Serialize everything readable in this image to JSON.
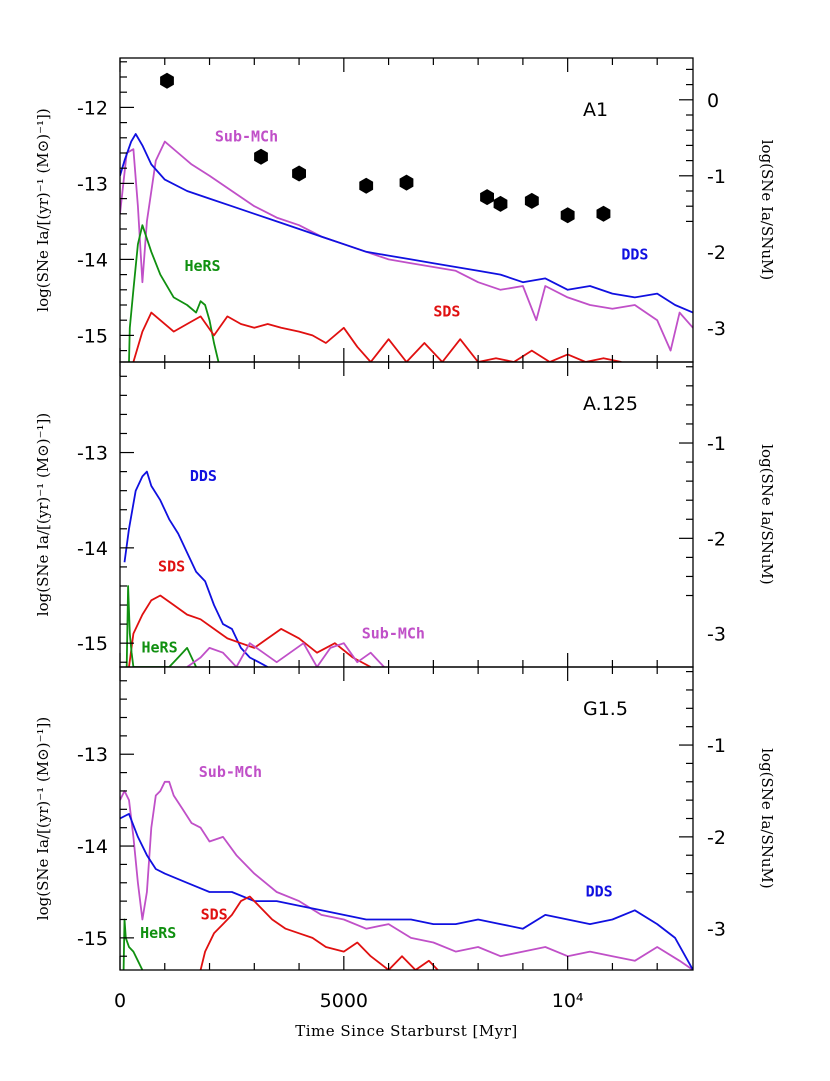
{
  "xlabel": "Time Since Starburst [Myr]",
  "x_ticks": [
    {
      "value": 0,
      "label": "0"
    },
    {
      "value": 5000,
      "label": "5000"
    },
    {
      "value": 10000,
      "label": "10⁴"
    }
  ],
  "xlim": [
    0,
    12800
  ],
  "colors": {
    "DDS": "#1010e0",
    "SDS": "#e01010",
    "Sub-MCh": "#c050c8",
    "HeRS": "#109010",
    "points": "#000000"
  },
  "chart_data": [
    {
      "type": "line",
      "panel_label": "A1",
      "ylabel_left": "log(SNe Ia/[(yr)⁻¹ (M⊙)⁻¹])",
      "ylabel_right": "log(SNe Ia/SNuM)",
      "ylim": [
        -15.35,
        -11.35
      ],
      "left_ticks": [
        {
          "value": -15,
          "label": "-15"
        },
        {
          "value": -14,
          "label": "-14"
        },
        {
          "value": -13,
          "label": "-13"
        },
        {
          "value": -12,
          "label": "-12"
        }
      ],
      "right_ticks": [
        {
          "value": -11.9,
          "label": "0"
        },
        {
          "value": -12.9,
          "label": "-1"
        },
        {
          "value": -13.9,
          "label": "-2"
        },
        {
          "value": -14.9,
          "label": "-3"
        }
      ],
      "series": [
        {
          "name": "Sub-MCh",
          "label_pos": [
            2120,
            -12.45
          ],
          "x": [
            0,
            150,
            300,
            400,
            500,
            600,
            800,
            1000,
            1300,
            1600,
            2000,
            2500,
            3000,
            3500,
            4000,
            4500,
            5000,
            5500,
            6000,
            6500,
            7000,
            7500,
            8000,
            8500,
            9000,
            9300,
            9500,
            10000,
            10500,
            11000,
            11500,
            12000,
            12300,
            12500,
            12800
          ],
          "y": [
            -13.4,
            -12.6,
            -12.55,
            -13.3,
            -14.3,
            -13.5,
            -12.7,
            -12.45,
            -12.6,
            -12.75,
            -12.9,
            -13.1,
            -13.3,
            -13.45,
            -13.55,
            -13.7,
            -13.8,
            -13.9,
            -14.0,
            -14.05,
            -14.1,
            -14.15,
            -14.3,
            -14.4,
            -14.35,
            -14.8,
            -14.35,
            -14.5,
            -14.6,
            -14.65,
            -14.6,
            -14.8,
            -15.2,
            -14.7,
            -14.9
          ]
        },
        {
          "name": "DDS",
          "label_pos": [
            11200,
            -14.0
          ],
          "x": [
            0,
            100,
            250,
            350,
            500,
            700,
            1000,
            1500,
            2000,
            2500,
            3000,
            3500,
            4000,
            4500,
            5000,
            5500,
            6000,
            6500,
            7000,
            7500,
            8000,
            8500,
            9000,
            9500,
            10000,
            10500,
            11000,
            11500,
            12000,
            12400,
            12800
          ],
          "y": [
            -12.9,
            -12.7,
            -12.45,
            -12.35,
            -12.5,
            -12.75,
            -12.95,
            -13.1,
            -13.2,
            -13.3,
            -13.4,
            -13.5,
            -13.6,
            -13.7,
            -13.8,
            -13.9,
            -13.95,
            -14.0,
            -14.05,
            -14.1,
            -14.15,
            -14.2,
            -14.3,
            -14.25,
            -14.4,
            -14.35,
            -14.45,
            -14.5,
            -14.45,
            -14.6,
            -14.7
          ]
        },
        {
          "name": "HeRS",
          "label_pos": [
            1440,
            -14.15
          ],
          "x": [
            200,
            220,
            300,
            400,
            500,
            700,
            900,
            1200,
            1500,
            1700,
            1800,
            1900,
            2000,
            2100,
            2200
          ],
          "y": [
            -15.35,
            -14.9,
            -14.4,
            -13.8,
            -13.55,
            -13.9,
            -14.2,
            -14.5,
            -14.6,
            -14.7,
            -14.55,
            -14.6,
            -14.8,
            -15.1,
            -15.35
          ]
        },
        {
          "name": "SDS",
          "label_pos": [
            7000,
            -14.75
          ],
          "x": [
            300,
            500,
            700,
            900,
            1200,
            1500,
            1800,
            2100,
            2400,
            2700,
            3000,
            3300,
            3600,
            4000,
            4300,
            4600,
            5000,
            5300,
            5600,
            6000,
            6400,
            6800,
            7200,
            7600,
            8000,
            8400,
            8800,
            9200,
            9600,
            10000,
            10400,
            10800,
            11200
          ],
          "y": [
            -15.35,
            -14.95,
            -14.7,
            -14.8,
            -14.95,
            -14.85,
            -14.75,
            -15.0,
            -14.75,
            -14.85,
            -14.9,
            -14.85,
            -14.9,
            -14.95,
            -15.0,
            -15.1,
            -14.9,
            -15.15,
            -15.35,
            -15.05,
            -15.35,
            -15.1,
            -15.35,
            -15.05,
            -15.35,
            -15.3,
            -15.35,
            -15.2,
            -15.35,
            -15.25,
            -15.35,
            -15.3,
            -15.35
          ]
        }
      ],
      "points": [
        {
          "x": 1050,
          "y": -11.65
        },
        {
          "x": 3150,
          "y": -12.65
        },
        {
          "x": 4000,
          "y": -12.87
        },
        {
          "x": 5500,
          "y": -13.03
        },
        {
          "x": 6400,
          "y": -12.99
        },
        {
          "x": 8200,
          "y": -13.18
        },
        {
          "x": 8500,
          "y": -13.27
        },
        {
          "x": 9200,
          "y": -13.23
        },
        {
          "x": 10000,
          "y": -13.42
        },
        {
          "x": 10800,
          "y": -13.4
        }
      ]
    },
    {
      "type": "line",
      "panel_label": "A.125",
      "ylabel_left": "log(SNe Ia/[(yr)⁻¹ (M⊙)⁻¹])",
      "ylabel_right": "log(SNe Ia/SNuM)",
      "ylim": [
        -15.25,
        -12.05
      ],
      "left_ticks": [
        {
          "value": -15,
          "label": "-15"
        },
        {
          "value": -14,
          "label": "-14"
        },
        {
          "value": -13,
          "label": "-13"
        }
      ],
      "right_ticks": [
        {
          "value": -12.9,
          "label": "-1"
        },
        {
          "value": -13.9,
          "label": "-2"
        },
        {
          "value": -14.9,
          "label": "-3"
        }
      ],
      "series": [
        {
          "name": "DDS",
          "label_pos": [
            1560,
            -13.3
          ],
          "x": [
            100,
            200,
            350,
            500,
            600,
            700,
            900,
            1100,
            1300,
            1500,
            1700,
            1900,
            2100,
            2300,
            2500,
            2700,
            2900,
            3100,
            3300
          ],
          "y": [
            -14.15,
            -13.8,
            -13.4,
            -13.25,
            -13.2,
            -13.35,
            -13.5,
            -13.7,
            -13.85,
            -14.05,
            -14.25,
            -14.35,
            -14.6,
            -14.8,
            -14.85,
            -15.05,
            -15.15,
            -15.2,
            -15.25
          ]
        },
        {
          "name": "SDS",
          "label_pos": [
            850,
            -14.25
          ],
          "x": [
            200,
            300,
            500,
            700,
            900,
            1200,
            1500,
            1800,
            2100,
            2400,
            2700,
            3000,
            3300,
            3600,
            4000,
            4400,
            4800,
            5200,
            5600
          ],
          "y": [
            -15.25,
            -14.9,
            -14.7,
            -14.55,
            -14.5,
            -14.6,
            -14.7,
            -14.75,
            -14.85,
            -14.95,
            -15.0,
            -15.05,
            -14.95,
            -14.85,
            -14.95,
            -15.1,
            -15.0,
            -15.15,
            -15.25
          ]
        },
        {
          "name": "HeRS",
          "label_pos": [
            480,
            -15.1
          ],
          "x": [
            150,
            180,
            220,
            260,
            300,
            1100,
            1300,
            1500,
            1700
          ],
          "y": [
            -15.25,
            -14.4,
            -14.9,
            -15.1,
            -15.25,
            -15.25,
            -15.15,
            -15.05,
            -15.25
          ]
        },
        {
          "name": "Sub-MCh",
          "label_pos": [
            5400,
            -14.95
          ],
          "x": [
            1500,
            1800,
            2000,
            2300,
            2600,
            2900,
            3200,
            3500,
            3800,
            4100,
            4400,
            4700,
            5000,
            5300,
            5600,
            5900
          ],
          "y": [
            -15.25,
            -15.15,
            -15.05,
            -15.1,
            -15.25,
            -15.0,
            -15.1,
            -15.2,
            -15.1,
            -15.0,
            -15.25,
            -15.05,
            -15.0,
            -15.2,
            -15.1,
            -15.25
          ]
        }
      ]
    },
    {
      "type": "line",
      "panel_label": "G1.5",
      "ylabel_left": "log(SNe Ia/[(yr)⁻¹ (M⊙)⁻¹])",
      "ylabel_right": "log(SNe Ia/SNuM)",
      "ylim": [
        -15.35,
        -12.05
      ],
      "left_ticks": [
        {
          "value": -15,
          "label": "-15"
        },
        {
          "value": -14,
          "label": "-14"
        },
        {
          "value": -13,
          "label": "-13"
        }
      ],
      "right_ticks": [
        {
          "value": -12.9,
          "label": "-1"
        },
        {
          "value": -13.9,
          "label": "-2"
        },
        {
          "value": -14.9,
          "label": "-3"
        }
      ],
      "series": [
        {
          "name": "Sub-MCh",
          "label_pos": [
            1760,
            -13.25
          ],
          "x": [
            0,
            100,
            200,
            300,
            400,
            500,
            600,
            700,
            800,
            900,
            1000,
            1100,
            1200,
            1400,
            1600,
            1800,
            2000,
            2300,
            2600,
            3000,
            3500,
            4000,
            4500,
            5000,
            5500,
            6000,
            6500,
            7000,
            7500,
            8000,
            8500,
            9000,
            9500,
            10000,
            10500,
            11000,
            11500,
            12000,
            12500,
            12800
          ],
          "y": [
            -13.5,
            -13.4,
            -13.5,
            -13.9,
            -14.4,
            -14.8,
            -14.5,
            -13.8,
            -13.45,
            -13.4,
            -13.3,
            -13.3,
            -13.45,
            -13.6,
            -13.75,
            -13.8,
            -13.95,
            -13.9,
            -14.1,
            -14.3,
            -14.5,
            -14.6,
            -14.75,
            -14.8,
            -14.9,
            -14.85,
            -15.0,
            -15.05,
            -15.15,
            -15.1,
            -15.2,
            -15.15,
            -15.1,
            -15.2,
            -15.15,
            -15.2,
            -15.25,
            -15.1,
            -15.25,
            -15.35
          ]
        },
        {
          "name": "DDS",
          "label_pos": [
            10400,
            -14.55
          ],
          "x": [
            0,
            200,
            400,
            600,
            800,
            1000,
            1500,
            2000,
            2500,
            3000,
            3500,
            4000,
            4500,
            5000,
            5500,
            6000,
            6500,
            7000,
            7500,
            8000,
            8500,
            9000,
            9500,
            10000,
            10500,
            11000,
            11500,
            12000,
            12400,
            12800
          ],
          "y": [
            -13.7,
            -13.65,
            -13.9,
            -14.1,
            -14.25,
            -14.3,
            -14.4,
            -14.5,
            -14.5,
            -14.6,
            -14.6,
            -14.65,
            -14.7,
            -14.75,
            -14.8,
            -14.8,
            -14.8,
            -14.85,
            -14.85,
            -14.8,
            -14.85,
            -14.9,
            -14.75,
            -14.8,
            -14.85,
            -14.8,
            -14.7,
            -14.85,
            -15.0,
            -15.35
          ]
        },
        {
          "name": "SDS",
          "label_pos": [
            1800,
            -14.8
          ],
          "x": [
            1800,
            1900,
            2100,
            2300,
            2500,
            2700,
            2900,
            3100,
            3400,
            3700,
            4000,
            4300,
            4600,
            5000,
            5300,
            5600,
            6000,
            6300,
            6600,
            6900,
            7100
          ],
          "y": [
            -15.35,
            -15.15,
            -14.95,
            -14.85,
            -14.75,
            -14.6,
            -14.55,
            -14.65,
            -14.8,
            -14.9,
            -14.95,
            -15.0,
            -15.1,
            -15.15,
            -15.05,
            -15.2,
            -15.35,
            -15.2,
            -15.35,
            -15.25,
            -15.35
          ]
        },
        {
          "name": "HeRS",
          "label_pos": [
            450,
            -15.0
          ],
          "x": [
            80,
            100,
            130,
            200,
            300,
            400,
            500
          ],
          "y": [
            -15.35,
            -14.8,
            -15.0,
            -15.1,
            -15.15,
            -15.25,
            -15.35
          ]
        }
      ]
    }
  ]
}
